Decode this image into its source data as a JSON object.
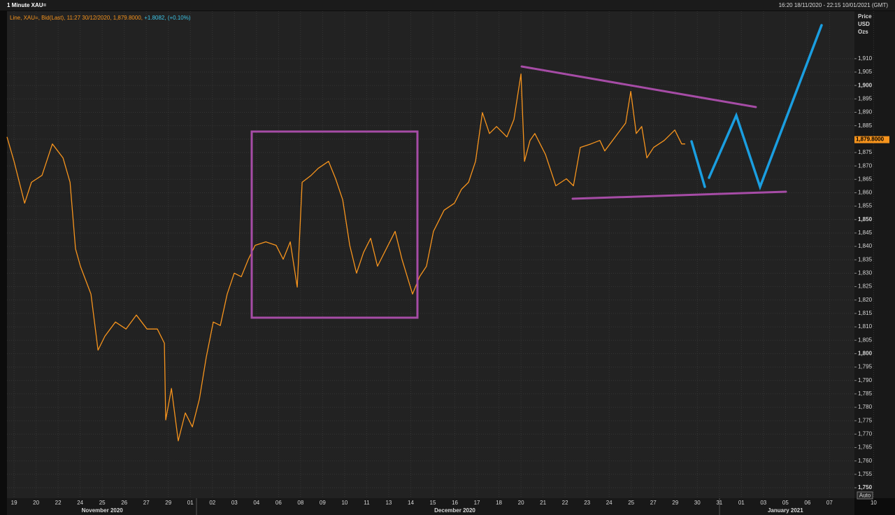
{
  "header": {
    "title": "1 Minute XAU=",
    "range": "16:20 18/11/2020 - 22:15 10/01/2021 (GMT)"
  },
  "chart_data": {
    "type": "line",
    "legend": {
      "text": "Line, XAU=, Bid(Last), 11:27 30/12/2020, 1,879.8000,",
      "change": "+1.8082, (+0.10%)"
    },
    "y_axis_label": [
      "Price",
      "USD",
      "Ozs"
    ],
    "categories": [
      "19",
      "20",
      "22",
      "24",
      "25",
      "26",
      "27",
      "29",
      "01",
      "02",
      "03",
      "04",
      "06",
      "08",
      "09",
      "10",
      "11",
      "13",
      "14",
      "15",
      "16",
      "17",
      "18",
      "20",
      "21",
      "22",
      "23",
      "24",
      "25",
      "27",
      "29",
      "30",
      "31",
      "01",
      "03",
      "05",
      "06",
      "07",
      null,
      "10"
    ],
    "months": [
      {
        "label": "November 2020",
        "at": 4
      },
      {
        "label": "December 2020",
        "at": 20
      },
      {
        "label": "January 2021",
        "at": 35
      }
    ],
    "series": [
      {
        "name": "XAU=",
        "color": "#f7941d",
        "x": [
          -0.32,
          0,
          0.48,
          0.79,
          1.27,
          1.74,
          2.22,
          2.54,
          2.79,
          3.01,
          3.49,
          3.81,
          4.12,
          4.6,
          5.08,
          5.55,
          6.03,
          6.5,
          6.82,
          6.88,
          7.14,
          7.45,
          7.77,
          8.09,
          8.41,
          8.72,
          9.04,
          9.36,
          9.67,
          9.99,
          10.31,
          10.63,
          10.94,
          11.42,
          11.89,
          12.21,
          12.53,
          12.85,
          13.07,
          13.48,
          13.8,
          14.27,
          14.59,
          14.91,
          15.23,
          15.54,
          15.86,
          16.18,
          16.49,
          16.97,
          17.29,
          17.6,
          18.08,
          18.4,
          18.71,
          19.03,
          19.51,
          19.98,
          20.3,
          20.62,
          20.94,
          21.25,
          21.57,
          21.89,
          22.36,
          22.68,
          23,
          23.16,
          23.41,
          23.63,
          24.11,
          24.58,
          25.06,
          25.38,
          25.69,
          26.17,
          26.58,
          26.8,
          27.75,
          27.98,
          28.23,
          28.48,
          28.71,
          29.02,
          29.5,
          29.98,
          30.29,
          30.45
        ],
        "values": [
          1880.8,
          1871.7,
          1856.1,
          1863.9,
          1866.5,
          1878.2,
          1873,
          1863.9,
          1839.1,
          1832.6,
          1822.2,
          1801.3,
          1806.5,
          1811.8,
          1809.2,
          1814.4,
          1809.2,
          1809.2,
          1803.9,
          1775.3,
          1787,
          1767.5,
          1777.9,
          1772.7,
          1783.1,
          1798.7,
          1811.8,
          1810.5,
          1822.2,
          1830,
          1828.7,
          1835.2,
          1840.4,
          1841.7,
          1840.4,
          1835.2,
          1841.7,
          1824.8,
          1863.9,
          1866.5,
          1869.1,
          1871.7,
          1865.2,
          1857.4,
          1840.4,
          1830,
          1837.8,
          1843,
          1832.6,
          1840.4,
          1845.6,
          1835.2,
          1822.2,
          1828.7,
          1832.6,
          1845.6,
          1853.5,
          1856.1,
          1861.3,
          1863.9,
          1871.7,
          1889.9,
          1882.1,
          1884.7,
          1880.8,
          1887.3,
          1904.3,
          1871.7,
          1879.5,
          1882.1,
          1874.3,
          1862.6,
          1865.2,
          1862.6,
          1876.9,
          1878.2,
          1879.5,
          1875.6,
          1886,
          1897.8,
          1882.1,
          1884.7,
          1873,
          1876.9,
          1879.5,
          1883.4,
          1878.2,
          1878.2
        ]
      }
    ],
    "xlim": [
      -0.32,
      38.13
    ],
    "ylim": [
      1746.1,
      1927.7
    ],
    "yticks": [
      {
        "value": 1750,
        "label": "1,750"
      },
      {
        "value": 1755,
        "label": "1,755"
      },
      {
        "value": 1760,
        "label": "1,760"
      },
      {
        "value": 1765,
        "label": "1,765"
      },
      {
        "value": 1770,
        "label": "1,770"
      },
      {
        "value": 1775,
        "label": "1,775"
      },
      {
        "value": 1780,
        "label": "1,780"
      },
      {
        "value": 1785,
        "label": "1,785"
      },
      {
        "value": 1790,
        "label": "1,790"
      },
      {
        "value": 1795,
        "label": "1,795"
      },
      {
        "value": 1800,
        "label": "1,800"
      },
      {
        "value": 1805,
        "label": "1,805"
      },
      {
        "value": 1810,
        "label": "1,810"
      },
      {
        "value": 1815,
        "label": "1,815"
      },
      {
        "value": 1820,
        "label": "1,820"
      },
      {
        "value": 1825,
        "label": "1,825"
      },
      {
        "value": 1830,
        "label": "1,830"
      },
      {
        "value": 1835,
        "label": "1,835"
      },
      {
        "value": 1840,
        "label": "1,840"
      },
      {
        "value": 1845,
        "label": "1,845"
      },
      {
        "value": 1850,
        "label": "1,850"
      },
      {
        "value": 1855,
        "label": "1,855"
      },
      {
        "value": 1860,
        "label": "1,860"
      },
      {
        "value": 1865,
        "label": "1,865"
      },
      {
        "value": 1870,
        "label": "1,870"
      },
      {
        "value": 1875,
        "label": "1,875"
      },
      {
        "value": 1880,
        "label": "1,880"
      },
      {
        "value": 1885,
        "label": "1,885"
      },
      {
        "value": 1890,
        "label": "1,890"
      },
      {
        "value": 1895,
        "label": "1,895"
      },
      {
        "value": 1900,
        "label": "1,900"
      },
      {
        "value": 1905,
        "label": "1,905"
      },
      {
        "value": 1910,
        "label": "1,910"
      }
    ],
    "last_price": {
      "value": 1879.8,
      "label": "1,879.8000"
    },
    "scale_button": "Auto",
    "grid": true
  }
}
